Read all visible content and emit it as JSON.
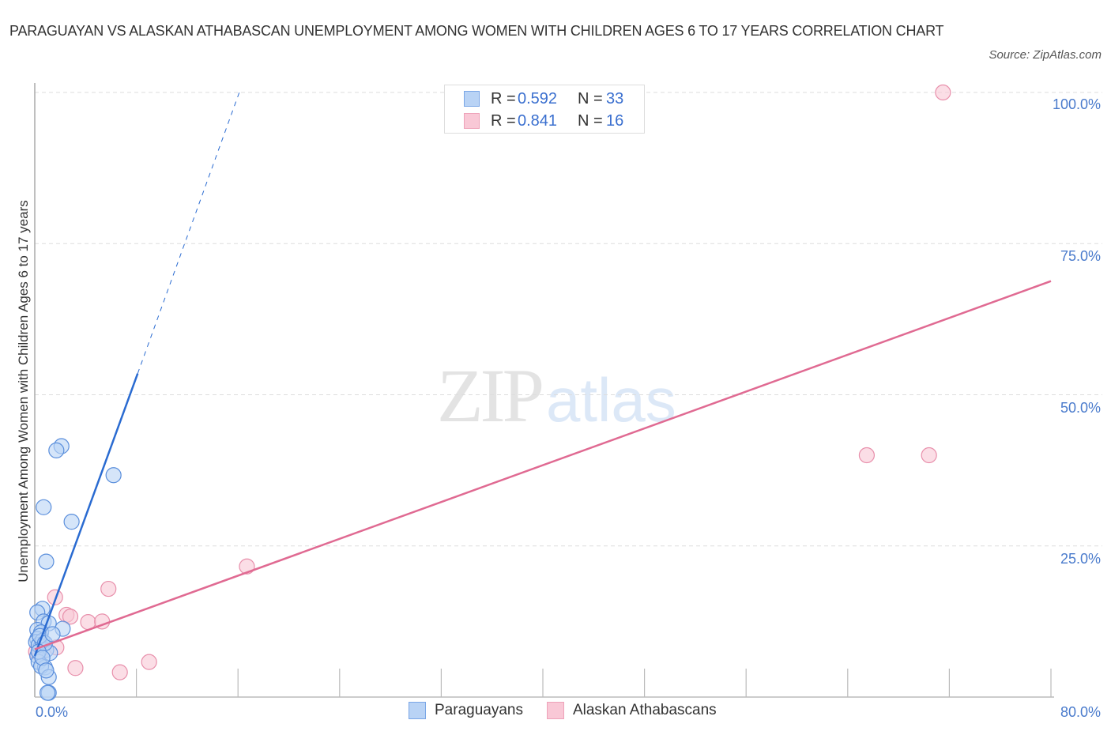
{
  "header": {
    "title": "PARAGUAYAN VS ALASKAN ATHABASCAN UNEMPLOYMENT AMONG WOMEN WITH CHILDREN AGES 6 TO 17 YEARS CORRELATION CHART",
    "source": "Source: ZipAtlas.com"
  },
  "watermark": {
    "zip": "ZIP",
    "atlas": "atlas"
  },
  "colors": {
    "paraguayans_fill": "#b9d3f5",
    "paraguayans_stroke": "#5b8fdc",
    "paraguayans_line": "#2a6bd1",
    "alaskan_fill": "#f9c8d6",
    "alaskan_stroke": "#e88fab",
    "alaskan_line": "#e06a92",
    "tick_label": "#4a7bcc",
    "grid": "#dddddd"
  },
  "legend_top": {
    "rows": [
      {
        "r_label": "R =",
        "r_value": "0.592",
        "n_label": "N =",
        "n_value": "33"
      },
      {
        "r_label": "R =",
        "r_value": "0.841",
        "n_label": "N =",
        "n_value": "16"
      }
    ]
  },
  "legend_bottom": {
    "items": [
      {
        "label": "Paraguayans"
      },
      {
        "label": "Alaskan Athabascans"
      }
    ]
  },
  "axes": {
    "x_left_label": "0.0%",
    "x_right_label": "80.0%",
    "y_tick_labels": [
      "100.0%",
      "75.0%",
      "50.0%",
      "25.0%"
    ]
  },
  "chart_data": {
    "type": "scatter",
    "title": "PARAGUAYAN VS ALASKAN ATHABASCAN UNEMPLOYMENT AMONG WOMEN WITH CHILDREN AGES 6 TO 17 YEARS CORRELATION CHART",
    "xlabel": "",
    "ylabel": "Unemployment Among Women with Children Ages 6 to 17 years",
    "xlim": [
      0,
      80
    ],
    "ylim": [
      0,
      100
    ],
    "x_ticks": [
      0,
      8,
      16,
      24,
      32,
      40,
      48,
      56,
      64,
      72,
      80
    ],
    "x_tick_labels_shown": [
      "0.0%",
      "80.0%"
    ],
    "y_ticks": [
      25,
      50,
      75,
      100
    ],
    "y_tick_labels": [
      "25.0%",
      "50.0%",
      "75.0%",
      "100.0%"
    ],
    "grid": "horizontal dashed",
    "legend_position": "bottom center; stats box top center",
    "series": [
      {
        "name": "Paraguayans",
        "R": 0.592,
        "N": 33,
        "points": [
          [
            2.1,
            41.5
          ],
          [
            1.7,
            40.8
          ],
          [
            6.2,
            36.7
          ],
          [
            0.7,
            31.4
          ],
          [
            2.9,
            29.0
          ],
          [
            0.9,
            22.4
          ],
          [
            0.6,
            14.6
          ],
          [
            0.2,
            14.0
          ],
          [
            0.7,
            12.5
          ],
          [
            1.1,
            12.2
          ],
          [
            2.2,
            11.3
          ],
          [
            0.2,
            11.1
          ],
          [
            0.5,
            10.7
          ],
          [
            0.2,
            9.6
          ],
          [
            0.1,
            9.1
          ],
          [
            0.5,
            8.4
          ],
          [
            0.9,
            7.8
          ],
          [
            1.2,
            7.3
          ],
          [
            0.2,
            6.8
          ],
          [
            0.3,
            5.8
          ],
          [
            0.8,
            4.9
          ],
          [
            0.5,
            5.1
          ],
          [
            1.1,
            3.3
          ],
          [
            1.1,
            0.7
          ],
          [
            1.0,
            0.7
          ],
          [
            0.3,
            8.6
          ],
          [
            0.6,
            9.3
          ],
          [
            0.4,
            10.1
          ],
          [
            0.8,
            8.9
          ],
          [
            1.4,
            10.4
          ],
          [
            0.3,
            7.5
          ],
          [
            0.6,
            6.5
          ],
          [
            0.9,
            4.4
          ]
        ],
        "trendline": {
          "x0": 0,
          "y0": 6.8,
          "x1": 8.1,
          "y1": 53.5,
          "dashed_extension_to": [
            16.1,
            100
          ]
        }
      },
      {
        "name": "Alaskan Athabascans",
        "R": 0.841,
        "N": 16,
        "points": [
          [
            71.5,
            100.0
          ],
          [
            65.5,
            40.0
          ],
          [
            70.4,
            40.0
          ],
          [
            16.7,
            21.6
          ],
          [
            5.8,
            17.9
          ],
          [
            1.6,
            16.5
          ],
          [
            2.5,
            13.6
          ],
          [
            2.8,
            13.3
          ],
          [
            4.2,
            12.4
          ],
          [
            5.3,
            12.5
          ],
          [
            1.7,
            8.2
          ],
          [
            3.2,
            4.8
          ],
          [
            6.7,
            4.1
          ],
          [
            9.0,
            5.8
          ],
          [
            0.1,
            7.5
          ],
          [
            0.4,
            7.1
          ]
        ],
        "trendline": {
          "x0": 0,
          "y0": 7.9,
          "x1": 80,
          "y1": 68.8
        }
      }
    ]
  }
}
